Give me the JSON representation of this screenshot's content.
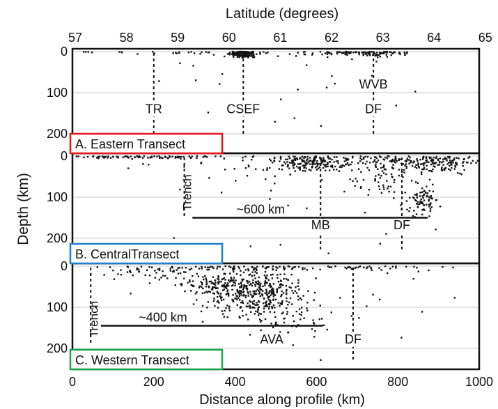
{
  "chart_data": {
    "type": "scatter",
    "title": "",
    "top_axis": {
      "label": "Latitude (degrees)",
      "ticks": [
        "57",
        "58",
        "59",
        "60",
        "61",
        "62",
        "63",
        "64",
        "65"
      ],
      "range": [
        57,
        65
      ]
    },
    "x_axis": {
      "label": "Distance along profile (km)",
      "ticks": [
        "0",
        "200",
        "400",
        "600",
        "800",
        "1000"
      ],
      "range": [
        0,
        1000
      ]
    },
    "y_axis": {
      "label": "Depth (km)",
      "ticks": [
        "0",
        "100",
        "200"
      ],
      "range": [
        0,
        230
      ],
      "inverted": true
    },
    "grid": "horizontal",
    "panels": [
      {
        "title": "A. Eastern Transect",
        "frame_color": "#e8141b",
        "features": [
          {
            "label": "TR",
            "x": 200,
            "depth_end": 200
          },
          {
            "label": "CSEF",
            "x": 420,
            "depth_end": 200
          },
          {
            "label": "DF",
            "x": 740,
            "depth_end": 200
          },
          {
            "label": "WVB",
            "x": 740,
            "label_depth": 70
          }
        ],
        "clusters": [
          {
            "x": 420,
            "depth": 5,
            "sx": 18,
            "sy": 6,
            "n": 140
          },
          {
            "x": 720,
            "depth": 3,
            "sx": 60,
            "sy": 4,
            "n": 110
          },
          {
            "x": 300,
            "depth": 2,
            "sx": 150,
            "sy": 4,
            "n": 40
          },
          {
            "x": 550,
            "depth": 60,
            "sx": 250,
            "sy": 60,
            "n": 25
          }
        ]
      },
      {
        "title": "B. CentralTransect",
        "frame_color": "#1e7fd0",
        "features": [
          {
            "label": "Trench",
            "x": 275,
            "depth_end": 150,
            "vertical": true
          },
          {
            "label": "MB",
            "x": 610,
            "depth_end": 230
          },
          {
            "label": "DF",
            "x": 810,
            "depth_end": 230
          }
        ],
        "distance_marker": {
          "label": "~600 km",
          "x0": 295,
          "x1": 870,
          "depth": 150
        },
        "clusters": [
          {
            "x": 160,
            "depth": 2,
            "sx": 110,
            "sy": 2,
            "n": 90
          },
          {
            "x": 590,
            "depth": 15,
            "sx": 45,
            "sy": 10,
            "n": 170
          },
          {
            "x": 800,
            "depth": 10,
            "sx": 80,
            "sy": 15,
            "n": 140
          },
          {
            "x": 910,
            "depth": 15,
            "sx": 50,
            "sy": 12,
            "n": 100
          },
          {
            "x": 860,
            "depth": 110,
            "sx": 20,
            "sy": 20,
            "n": 80
          },
          {
            "x": 760,
            "depth": 60,
            "sx": 40,
            "sy": 20,
            "n": 50
          },
          {
            "x": 450,
            "depth": 25,
            "sx": 100,
            "sy": 20,
            "n": 40
          },
          {
            "x": 650,
            "depth": 120,
            "sx": 170,
            "sy": 70,
            "n": 25
          }
        ]
      },
      {
        "title": "C. Western Transect",
        "frame_color": "#18a64b",
        "features": [
          {
            "label": "Trench",
            "x": 45,
            "depth_end": 190,
            "vertical": true
          },
          {
            "label": "AVA",
            "x": 490,
            "label_depth": 200
          },
          {
            "label": "DF",
            "x": 690,
            "depth_end": 230
          }
        ],
        "distance_marker": {
          "label": "~400 km",
          "x0": 70,
          "x1": 615,
          "depth": 145
        },
        "clusters": [
          {
            "x": 450,
            "depth": 65,
            "sx": 65,
            "sy": 28,
            "n": 400
          },
          {
            "x": 350,
            "depth": 45,
            "sx": 40,
            "sy": 12,
            "n": 80
          },
          {
            "x": 220,
            "depth": 15,
            "sx": 80,
            "sy": 12,
            "n": 70
          },
          {
            "x": 580,
            "depth": 3,
            "sx": 180,
            "sy": 4,
            "n": 90
          },
          {
            "x": 530,
            "depth": 130,
            "sx": 50,
            "sy": 25,
            "n": 50
          },
          {
            "x": 560,
            "depth": 120,
            "sx": 260,
            "sy": 80,
            "n": 35
          }
        ]
      }
    ]
  }
}
